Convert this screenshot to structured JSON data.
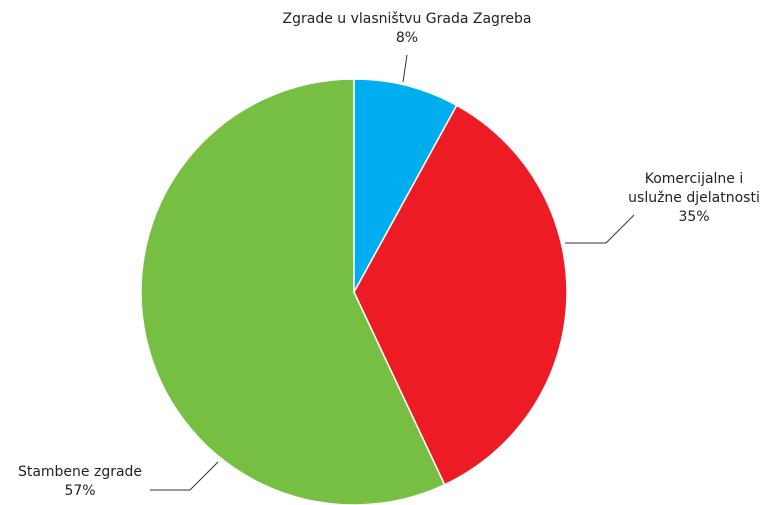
{
  "chart_data": {
    "type": "pie",
    "categories": [
      "Zgrade u vlasništvu Grada Zagreba",
      "Komercijalne i uslužne djelatnosti",
      "Stambene zgrade"
    ],
    "values": [
      8,
      35,
      57
    ],
    "value_labels": [
      "8%",
      "35%",
      "57%"
    ],
    "colors": [
      "#00aeef",
      "#ed1c24",
      "#76bf43"
    ]
  }
}
